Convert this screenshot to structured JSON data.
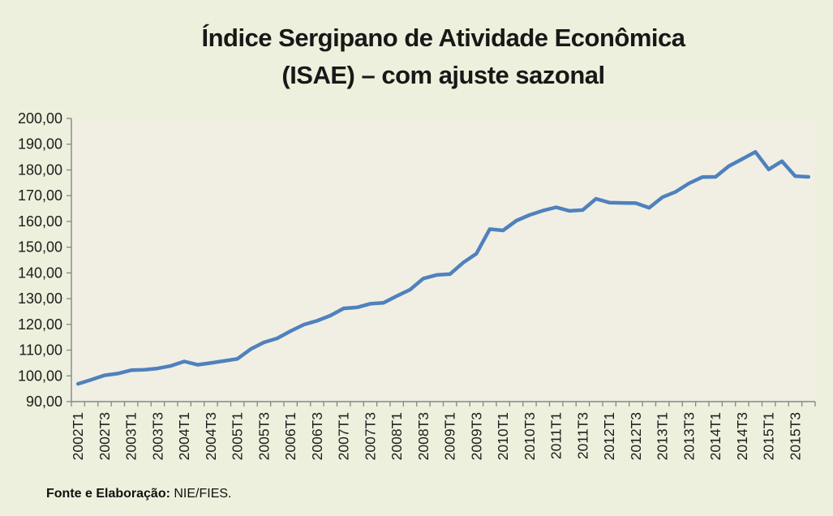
{
  "title": {
    "line1": "Índice Sergipano de Atividade Econômica",
    "line2": "(ISAE) – com ajuste sazonal"
  },
  "footer": {
    "bold": "Fonte e Elaboração:",
    "normal": " NIE/FIES."
  },
  "colors": {
    "page_background": "#edf0dc",
    "plot_background": "#f1efe4",
    "line": "#4f81bd",
    "axis": "#868686",
    "tick_label": "#1c1c1c"
  },
  "chart_data": {
    "type": "line",
    "title": "Índice Sergipano de Atividade Econômica (ISAE) – com ajuste sazonal",
    "xlabel": "",
    "ylabel": "",
    "grid": "off",
    "legend": "none",
    "ylim": [
      90,
      200
    ],
    "y_tick_step": 10,
    "y_ticks": [
      90,
      100,
      110,
      120,
      130,
      140,
      150,
      160,
      170,
      180,
      190,
      200
    ],
    "y_tick_labels": [
      "90,00",
      "100,00",
      "110,00",
      "120,00",
      "130,00",
      "140,00",
      "150,00",
      "160,00",
      "170,00",
      "180,00",
      "190,00",
      "200,00"
    ],
    "x_tick_label_every": 2,
    "x": [
      "2002T1",
      "2002T2",
      "2002T3",
      "2002T4",
      "2003T1",
      "2003T2",
      "2003T3",
      "2003T4",
      "2004T1",
      "2004T2",
      "2004T3",
      "2004T4",
      "2005T1",
      "2005T2",
      "2005T3",
      "2005T4",
      "2006T1",
      "2006T2",
      "2006T3",
      "2006T4",
      "2007T1",
      "2007T2",
      "2007T3",
      "2007T4",
      "2008T1",
      "2008T2",
      "2008T3",
      "2008T4",
      "2009T1",
      "2009T2",
      "2009T3",
      "2009T4",
      "2010T1",
      "2010T2",
      "2010T3",
      "2010T4",
      "2011T1",
      "2011T2",
      "2011T3",
      "2011T4",
      "2012T1",
      "2012T2",
      "2012T3",
      "2012T4",
      "2013T1",
      "2013T2",
      "2013T3",
      "2013T4",
      "2014T1",
      "2014T2",
      "2014T3",
      "2014T4",
      "2015T1",
      "2015T2",
      "2015T3",
      "2015T4"
    ],
    "values": [
      96.9,
      98.5,
      100.2,
      100.9,
      102.2,
      102.4,
      102.9,
      103.9,
      105.6,
      104.3,
      105.0,
      105.8,
      106.6,
      110.4,
      113.0,
      114.6,
      117.4,
      119.9,
      121.4,
      123.4,
      126.2,
      126.6,
      128.0,
      128.4,
      131.0,
      133.5,
      137.8,
      139.2,
      139.5,
      144.0,
      147.5,
      157.0,
      156.5,
      160.3,
      162.5,
      164.2,
      165.5,
      164.1,
      164.4,
      168.8,
      167.3,
      167.2,
      167.1,
      165.3,
      169.4,
      171.5,
      174.8,
      177.2,
      177.3,
      181.5,
      184.2,
      187.0,
      180.2,
      183.4,
      177.6,
      177.3
    ]
  }
}
